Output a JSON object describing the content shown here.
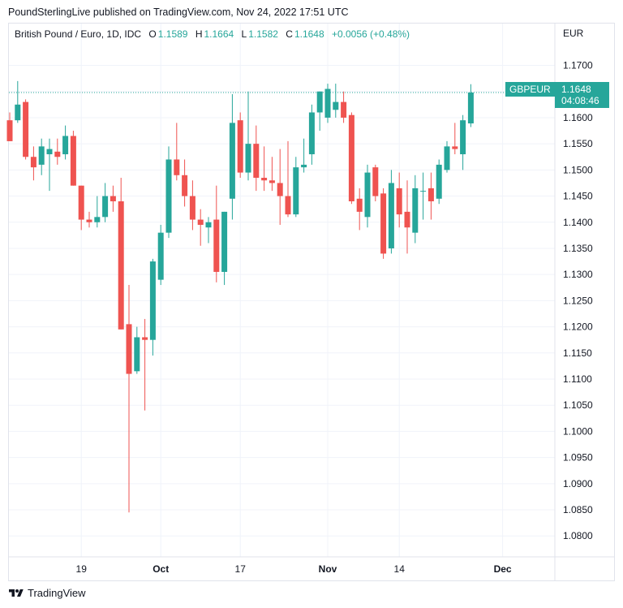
{
  "publisher_line": "PoundSterlingLive published on TradingView.com, Nov 24, 2022 17:51 UTC",
  "legend": {
    "symbol": "British Pound / Euro, 1D, IDC",
    "o_label": "O",
    "o_value": "1.1589",
    "h_label": "H",
    "h_value": "1.1664",
    "l_label": "L",
    "l_value": "1.1582",
    "c_label": "C",
    "c_value": "1.1648",
    "change": "+0.0056 (+0.48%)"
  },
  "price_tag": {
    "label": "GBPEUR",
    "value": "1.1648",
    "countdown": "04:08:46"
  },
  "footer": {
    "brand": "TradingView",
    "logo_icon": "tradingview-logo-icon"
  },
  "colors": {
    "up": "#26a69a",
    "down": "#ef5350",
    "grid": "#f0f3fa",
    "axis_text": "#131722"
  },
  "chart_data": {
    "type": "candlestick",
    "currency_label": "EUR",
    "ylim": [
      1.076,
      1.178
    ],
    "y_ticks": [
      "1.1700",
      "1.1650",
      "1.1600",
      "1.1550",
      "1.1500",
      "1.1450",
      "1.1400",
      "1.1350",
      "1.1300",
      "1.1250",
      "1.1200",
      "1.1150",
      "1.1100",
      "1.1050",
      "1.1000",
      "1.0950",
      "1.0900",
      "1.0850",
      "1.0800"
    ],
    "x_ticks": [
      {
        "label": "19",
        "index": 9
      },
      {
        "label": "Oct",
        "index": 19
      },
      {
        "label": "17",
        "index": 29
      },
      {
        "label": "Nov",
        "index": 40
      },
      {
        "label": "14",
        "index": 49
      },
      {
        "label": "Dec",
        "index": 62
      }
    ],
    "last_price": 1.1648,
    "candles": [
      [
        1.1595,
        1.161,
        1.1555,
        1.1555
      ],
      [
        1.1595,
        1.167,
        1.159,
        1.1625
      ],
      [
        1.163,
        1.1635,
        1.152,
        1.1525
      ],
      [
        1.1525,
        1.1545,
        1.148,
        1.1505
      ],
      [
        1.151,
        1.156,
        1.149,
        1.1545
      ],
      [
        1.153,
        1.156,
        1.146,
        1.154
      ],
      [
        1.1535,
        1.156,
        1.151,
        1.1525
      ],
      [
        1.153,
        1.1585,
        1.152,
        1.1565
      ],
      [
        1.1565,
        1.1575,
        1.147,
        1.147
      ],
      [
        1.147,
        1.147,
        1.1385,
        1.1405
      ],
      [
        1.1405,
        1.142,
        1.139,
        1.14
      ],
      [
        1.14,
        1.145,
        1.139,
        1.141
      ],
      [
        1.141,
        1.1475,
        1.14,
        1.145
      ],
      [
        1.145,
        1.147,
        1.142,
        1.144
      ],
      [
        1.144,
        1.1485,
        1.1195,
        1.1195
      ],
      [
        1.1205,
        1.128,
        1.0845,
        1.111
      ],
      [
        1.1115,
        1.12,
        1.111,
        1.118
      ],
      [
        1.118,
        1.1215,
        1.104,
        1.1175
      ],
      [
        1.1175,
        1.133,
        1.1145,
        1.1325
      ],
      [
        1.129,
        1.1395,
        1.128,
        1.138
      ],
      [
        1.138,
        1.1545,
        1.137,
        1.152
      ],
      [
        1.152,
        1.159,
        1.148,
        1.149
      ],
      [
        1.149,
        1.152,
        1.143,
        1.145
      ],
      [
        1.145,
        1.148,
        1.1385,
        1.1405
      ],
      [
        1.1405,
        1.1425,
        1.1355,
        1.1395
      ],
      [
        1.139,
        1.141,
        1.136,
        1.14
      ],
      [
        1.1405,
        1.147,
        1.1285,
        1.1305
      ],
      [
        1.1305,
        1.142,
        1.128,
        1.142
      ],
      [
        1.1445,
        1.1645,
        1.1405,
        1.159
      ],
      [
        1.1595,
        1.161,
        1.1485,
        1.1495
      ],
      [
        1.1495,
        1.165,
        1.148,
        1.155
      ],
      [
        1.155,
        1.1585,
        1.146,
        1.1485
      ],
      [
        1.1485,
        1.1545,
        1.146,
        1.148
      ],
      [
        1.148,
        1.1525,
        1.146,
        1.1475
      ],
      [
        1.1475,
        1.154,
        1.1395,
        1.145
      ],
      [
        1.145,
        1.1555,
        1.141,
        1.1415
      ],
      [
        1.1415,
        1.1525,
        1.141,
        1.1505
      ],
      [
        1.1505,
        1.156,
        1.1495,
        1.151
      ],
      [
        1.153,
        1.1625,
        1.151,
        1.161
      ],
      [
        1.161,
        1.165,
        1.1575,
        1.165
      ],
      [
        1.16,
        1.1665,
        1.159,
        1.1655
      ],
      [
        1.1615,
        1.1665,
        1.16,
        1.163
      ],
      [
        1.163,
        1.165,
        1.159,
        1.16
      ],
      [
        1.1605,
        1.161,
        1.1435,
        1.144
      ],
      [
        1.1445,
        1.1465,
        1.1385,
        1.142
      ],
      [
        1.141,
        1.151,
        1.139,
        1.1495
      ],
      [
        1.1505,
        1.151,
        1.144,
        1.145
      ],
      [
        1.1455,
        1.1465,
        1.133,
        1.134
      ],
      [
        1.135,
        1.15,
        1.134,
        1.1475
      ],
      [
        1.1465,
        1.1495,
        1.139,
        1.1415
      ],
      [
        1.142,
        1.148,
        1.134,
        1.139
      ],
      [
        1.138,
        1.149,
        1.136,
        1.1465
      ],
      [
        1.146,
        1.1495,
        1.1405,
        1.146
      ],
      [
        1.1465,
        1.1495,
        1.1405,
        1.144
      ],
      [
        1.1445,
        1.152,
        1.1435,
        1.151
      ],
      [
        1.15,
        1.1555,
        1.1495,
        1.1545
      ],
      [
        1.1545,
        1.159,
        1.153,
        1.154
      ],
      [
        1.153,
        1.1605,
        1.15,
        1.1595
      ],
      [
        1.1589,
        1.1664,
        1.1582,
        1.1648
      ]
    ]
  }
}
